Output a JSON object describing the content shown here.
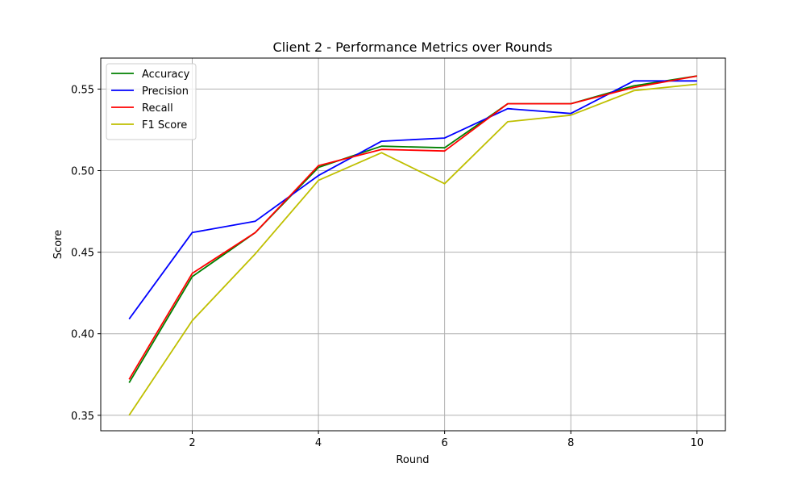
{
  "chart_data": {
    "type": "line",
    "title": "Client 2 - Performance Metrics over Rounds",
    "xlabel": "Round",
    "ylabel": "Score",
    "x": [
      1,
      2,
      3,
      4,
      5,
      6,
      7,
      8,
      9,
      10
    ],
    "xlim": [
      0.55,
      10.45
    ],
    "ylim": [
      0.3405,
      0.569
    ],
    "xticks": [
      2,
      4,
      6,
      8,
      10
    ],
    "yticks": [
      0.35,
      0.4,
      0.45,
      0.5,
      0.55
    ],
    "ytick_labels": [
      "0.35",
      "0.40",
      "0.45",
      "0.50",
      "0.55"
    ],
    "grid": true,
    "legend_position": "top-left",
    "series": [
      {
        "name": "Accuracy",
        "color": "#008000",
        "values": [
          0.37,
          0.435,
          0.462,
          0.502,
          0.515,
          0.514,
          0.541,
          0.541,
          0.552,
          0.558
        ]
      },
      {
        "name": "Precision",
        "color": "#0000ff",
        "values": [
          0.409,
          0.462,
          0.469,
          0.497,
          0.518,
          0.52,
          0.538,
          0.535,
          0.555,
          0.555
        ]
      },
      {
        "name": "Recall",
        "color": "#ff0000",
        "values": [
          0.372,
          0.437,
          0.462,
          0.503,
          0.513,
          0.512,
          0.541,
          0.541,
          0.551,
          0.558
        ]
      },
      {
        "name": "F1 Score",
        "color": "#bfbf00",
        "values": [
          0.35,
          0.408,
          0.449,
          0.494,
          0.511,
          0.492,
          0.53,
          0.534,
          0.549,
          0.553
        ]
      }
    ]
  }
}
